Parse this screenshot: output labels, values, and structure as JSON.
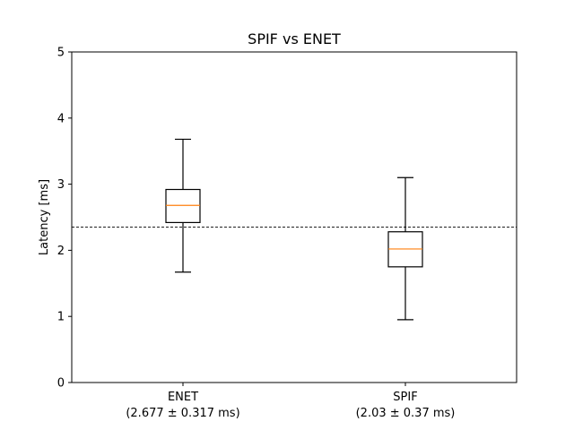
{
  "chart_data": {
    "type": "box",
    "title": "SPIF vs ENET",
    "xlabel": "",
    "ylabel": "Latency [ms]",
    "ylim": [
      0,
      5
    ],
    "yticks": [
      0,
      1,
      2,
      3,
      4,
      5
    ],
    "grid": false,
    "categories": [
      "ENET",
      "SPIF"
    ],
    "category_sublabels": [
      "(2.677 ± 0.317 ms)",
      "(2.03 ± 0.37 ms)"
    ],
    "boxes": [
      {
        "whisker_low": 1.67,
        "q1": 2.42,
        "median": 2.68,
        "q3": 2.92,
        "whisker_high": 3.68
      },
      {
        "whisker_low": 0.95,
        "q1": 1.75,
        "median": 2.02,
        "q3": 2.28,
        "whisker_high": 3.1
      }
    ],
    "reference_line": {
      "y": 2.35,
      "style": "dashed"
    },
    "colors": {
      "box": "#000000",
      "median": "#ff7f0e",
      "reference_line": "#000000"
    }
  }
}
